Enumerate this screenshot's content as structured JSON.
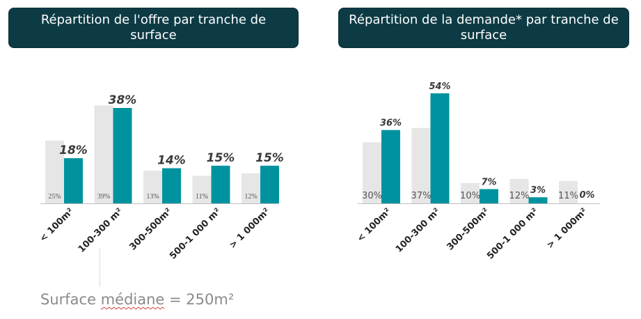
{
  "colors": {
    "header_bg": "#0d3b45",
    "supply": "#e6e6e6",
    "demand": "#00939f",
    "axis": "#bfbfbf"
  },
  "headers": {
    "left": "Répartition de l'offre par tranche de surface",
    "right": "Répartition de la demande* par tranche de surface"
  },
  "median": {
    "prefix": "Surface ",
    "word": "médiane",
    "suffix": " = 250m²"
  },
  "chart_data": [
    {
      "type": "bar",
      "categories": [
        "< 100m²",
        "100-300 m²",
        "300-500m²",
        "500-1 000 m²",
        "> 1 000m²"
      ],
      "series": [
        {
          "values": [
            25,
            39,
            13,
            11,
            12
          ],
          "labels": [
            "25%",
            "39%",
            "13%",
            "11%",
            "12%"
          ],
          "color": "#e6e6e6"
        },
        {
          "values": [
            18,
            38,
            14,
            15,
            15
          ],
          "labels": [
            "18%",
            "38%",
            "14%",
            "15%",
            "15%"
          ],
          "color": "#00939f"
        }
      ],
      "ylim": [
        0,
        40
      ]
    },
    {
      "type": "bar",
      "categories": [
        "< 100m²",
        "100-300 m²",
        "300-500m²",
        "500-1 000 m²",
        "> 1 000m²"
      ],
      "series": [
        {
          "values": [
            30,
            37,
            10,
            12,
            11
          ],
          "labels": [
            "30%",
            "37%",
            "10%",
            "12%",
            "11%"
          ],
          "color": "#e6e6e6"
        },
        {
          "values": [
            36,
            54,
            7,
            3,
            0
          ],
          "labels": [
            "36%",
            "54%",
            "7%",
            "3%",
            "0%"
          ],
          "color": "#00939f"
        }
      ],
      "ylim": [
        0,
        55
      ]
    }
  ]
}
